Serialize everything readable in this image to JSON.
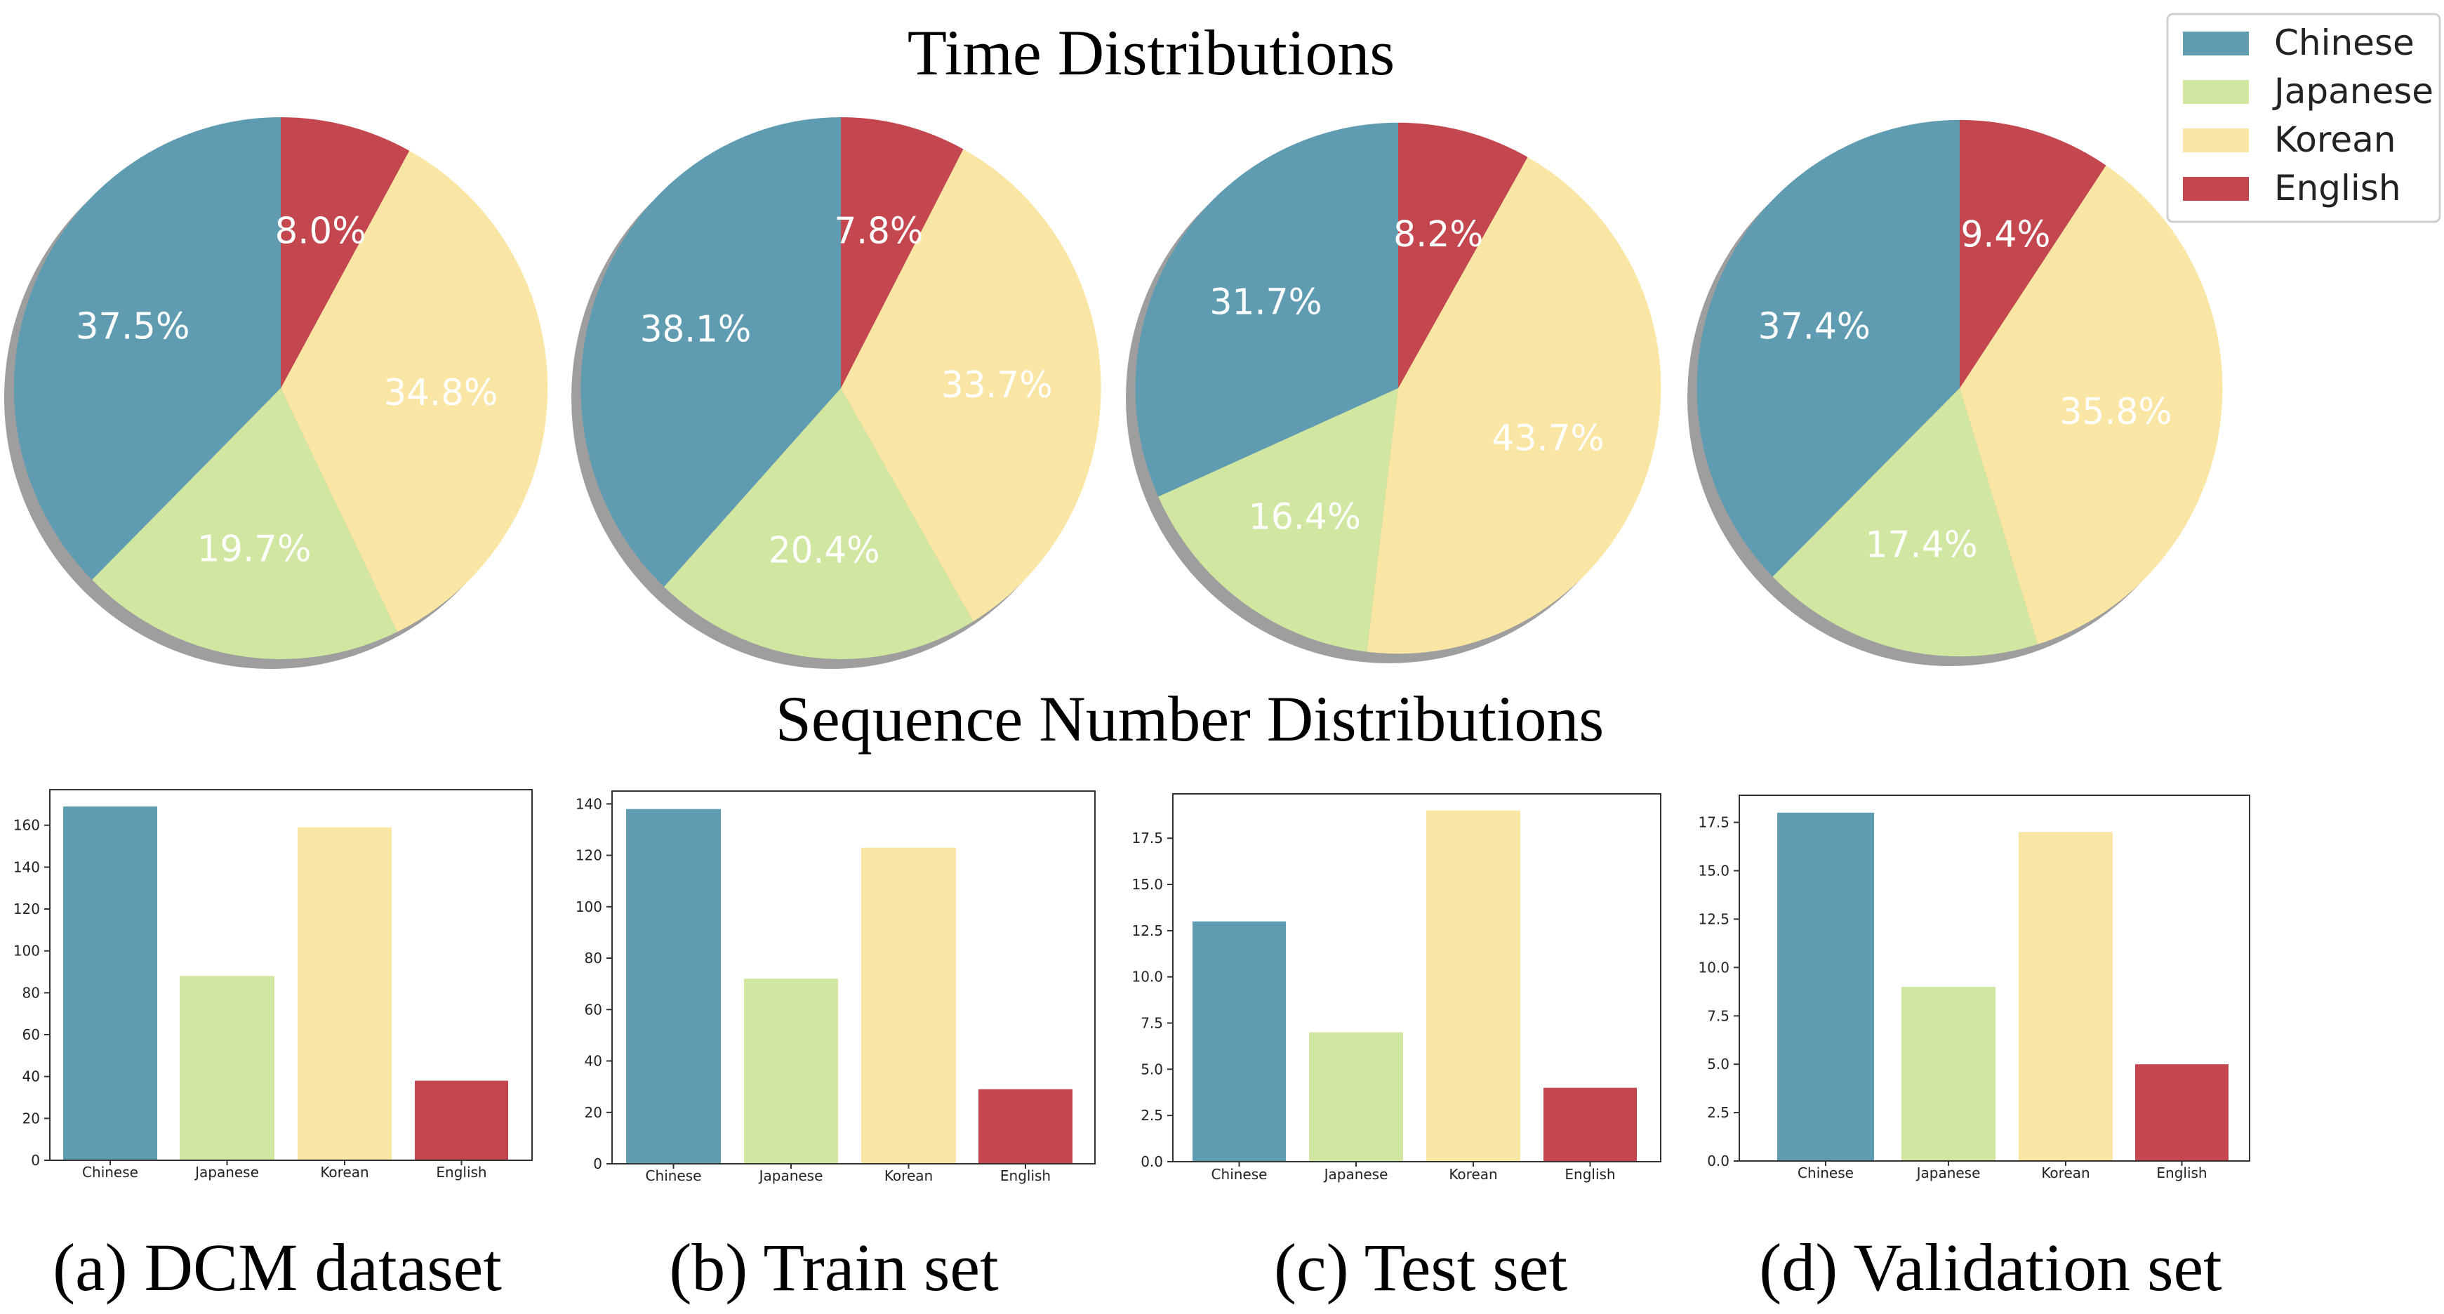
{
  "colors": {
    "Chinese": "#5f9cb2",
    "Japanese": "#d1e6a0",
    "Korean": "#fae6a4",
    "English": "#c4474f"
  },
  "headings": {
    "time": "Time Distributions",
    "sequence": "Sequence Number Distributions"
  },
  "legend": {
    "entries": [
      "Chinese",
      "Japanese",
      "Korean",
      "English"
    ]
  },
  "captions": [
    "(a) DCM dataset",
    "(b) Train set",
    "(c) Test set",
    "(d) Validation set"
  ],
  "chart_data": [
    {
      "type": "pie",
      "categories": [
        "Chinese",
        "Japanese",
        "Korean",
        "English"
      ],
      "values": [
        37.5,
        19.7,
        34.8,
        8.0
      ],
      "labels": [
        "37.5%",
        "19.7%",
        "34.8%",
        "8.0%"
      ]
    },
    {
      "type": "pie",
      "categories": [
        "Chinese",
        "Japanese",
        "Korean",
        "English"
      ],
      "values": [
        38.1,
        20.4,
        33.7,
        7.8
      ],
      "labels": [
        "38.1%",
        "20.4%",
        "33.7%",
        "7.8%"
      ]
    },
    {
      "type": "pie",
      "categories": [
        "Chinese",
        "Japanese",
        "Korean",
        "English"
      ],
      "values": [
        31.7,
        16.4,
        43.7,
        8.2
      ],
      "labels": [
        "31.7%",
        "16.4%",
        "43.7%",
        "8.2%"
      ]
    },
    {
      "type": "pie",
      "categories": [
        "Chinese",
        "Japanese",
        "Korean",
        "English"
      ],
      "values": [
        37.4,
        17.4,
        35.8,
        9.4
      ],
      "labels": [
        "37.4%",
        "17.4%",
        "35.8%",
        "9.4%"
      ]
    },
    {
      "type": "bar",
      "categories": [
        "Chinese",
        "Japanese",
        "Korean",
        "English"
      ],
      "values": [
        169,
        88,
        159,
        38
      ],
      "ylim": [
        0,
        177
      ],
      "yticks": [
        0,
        20,
        40,
        60,
        80,
        100,
        120,
        140,
        160
      ],
      "ytick_labels": [
        "0",
        "20",
        "40",
        "60",
        "80",
        "100",
        "120",
        "140",
        "160"
      ]
    },
    {
      "type": "bar",
      "categories": [
        "Chinese",
        "Japanese",
        "Korean",
        "English"
      ],
      "values": [
        138,
        72,
        123,
        29
      ],
      "ylim": [
        0,
        145
      ],
      "yticks": [
        0,
        20,
        40,
        60,
        80,
        100,
        120,
        140
      ],
      "ytick_labels": [
        "0",
        "20",
        "40",
        "60",
        "80",
        "100",
        "120",
        "140"
      ]
    },
    {
      "type": "bar",
      "categories": [
        "Chinese",
        "Japanese",
        "Korean",
        "English"
      ],
      "values": [
        13,
        7,
        19,
        4
      ],
      "ylim": [
        0,
        19.9
      ],
      "yticks": [
        0,
        2.5,
        5,
        7.5,
        10,
        12.5,
        15,
        17.5
      ],
      "ytick_labels": [
        "0.0",
        "2.5",
        "5.0",
        "7.5",
        "10.0",
        "12.5",
        "15.0",
        "17.5"
      ]
    },
    {
      "type": "bar",
      "categories": [
        "Chinese",
        "Japanese",
        "Korean",
        "English"
      ],
      "values": [
        18,
        9,
        17,
        5
      ],
      "ylim": [
        0,
        18.9
      ],
      "yticks": [
        0,
        2.5,
        5,
        7.5,
        10,
        12.5,
        15,
        17.5
      ],
      "ytick_labels": [
        "0.0",
        "2.5",
        "5.0",
        "7.5",
        "10.0",
        "12.5",
        "15.0",
        "17.5"
      ]
    }
  ]
}
